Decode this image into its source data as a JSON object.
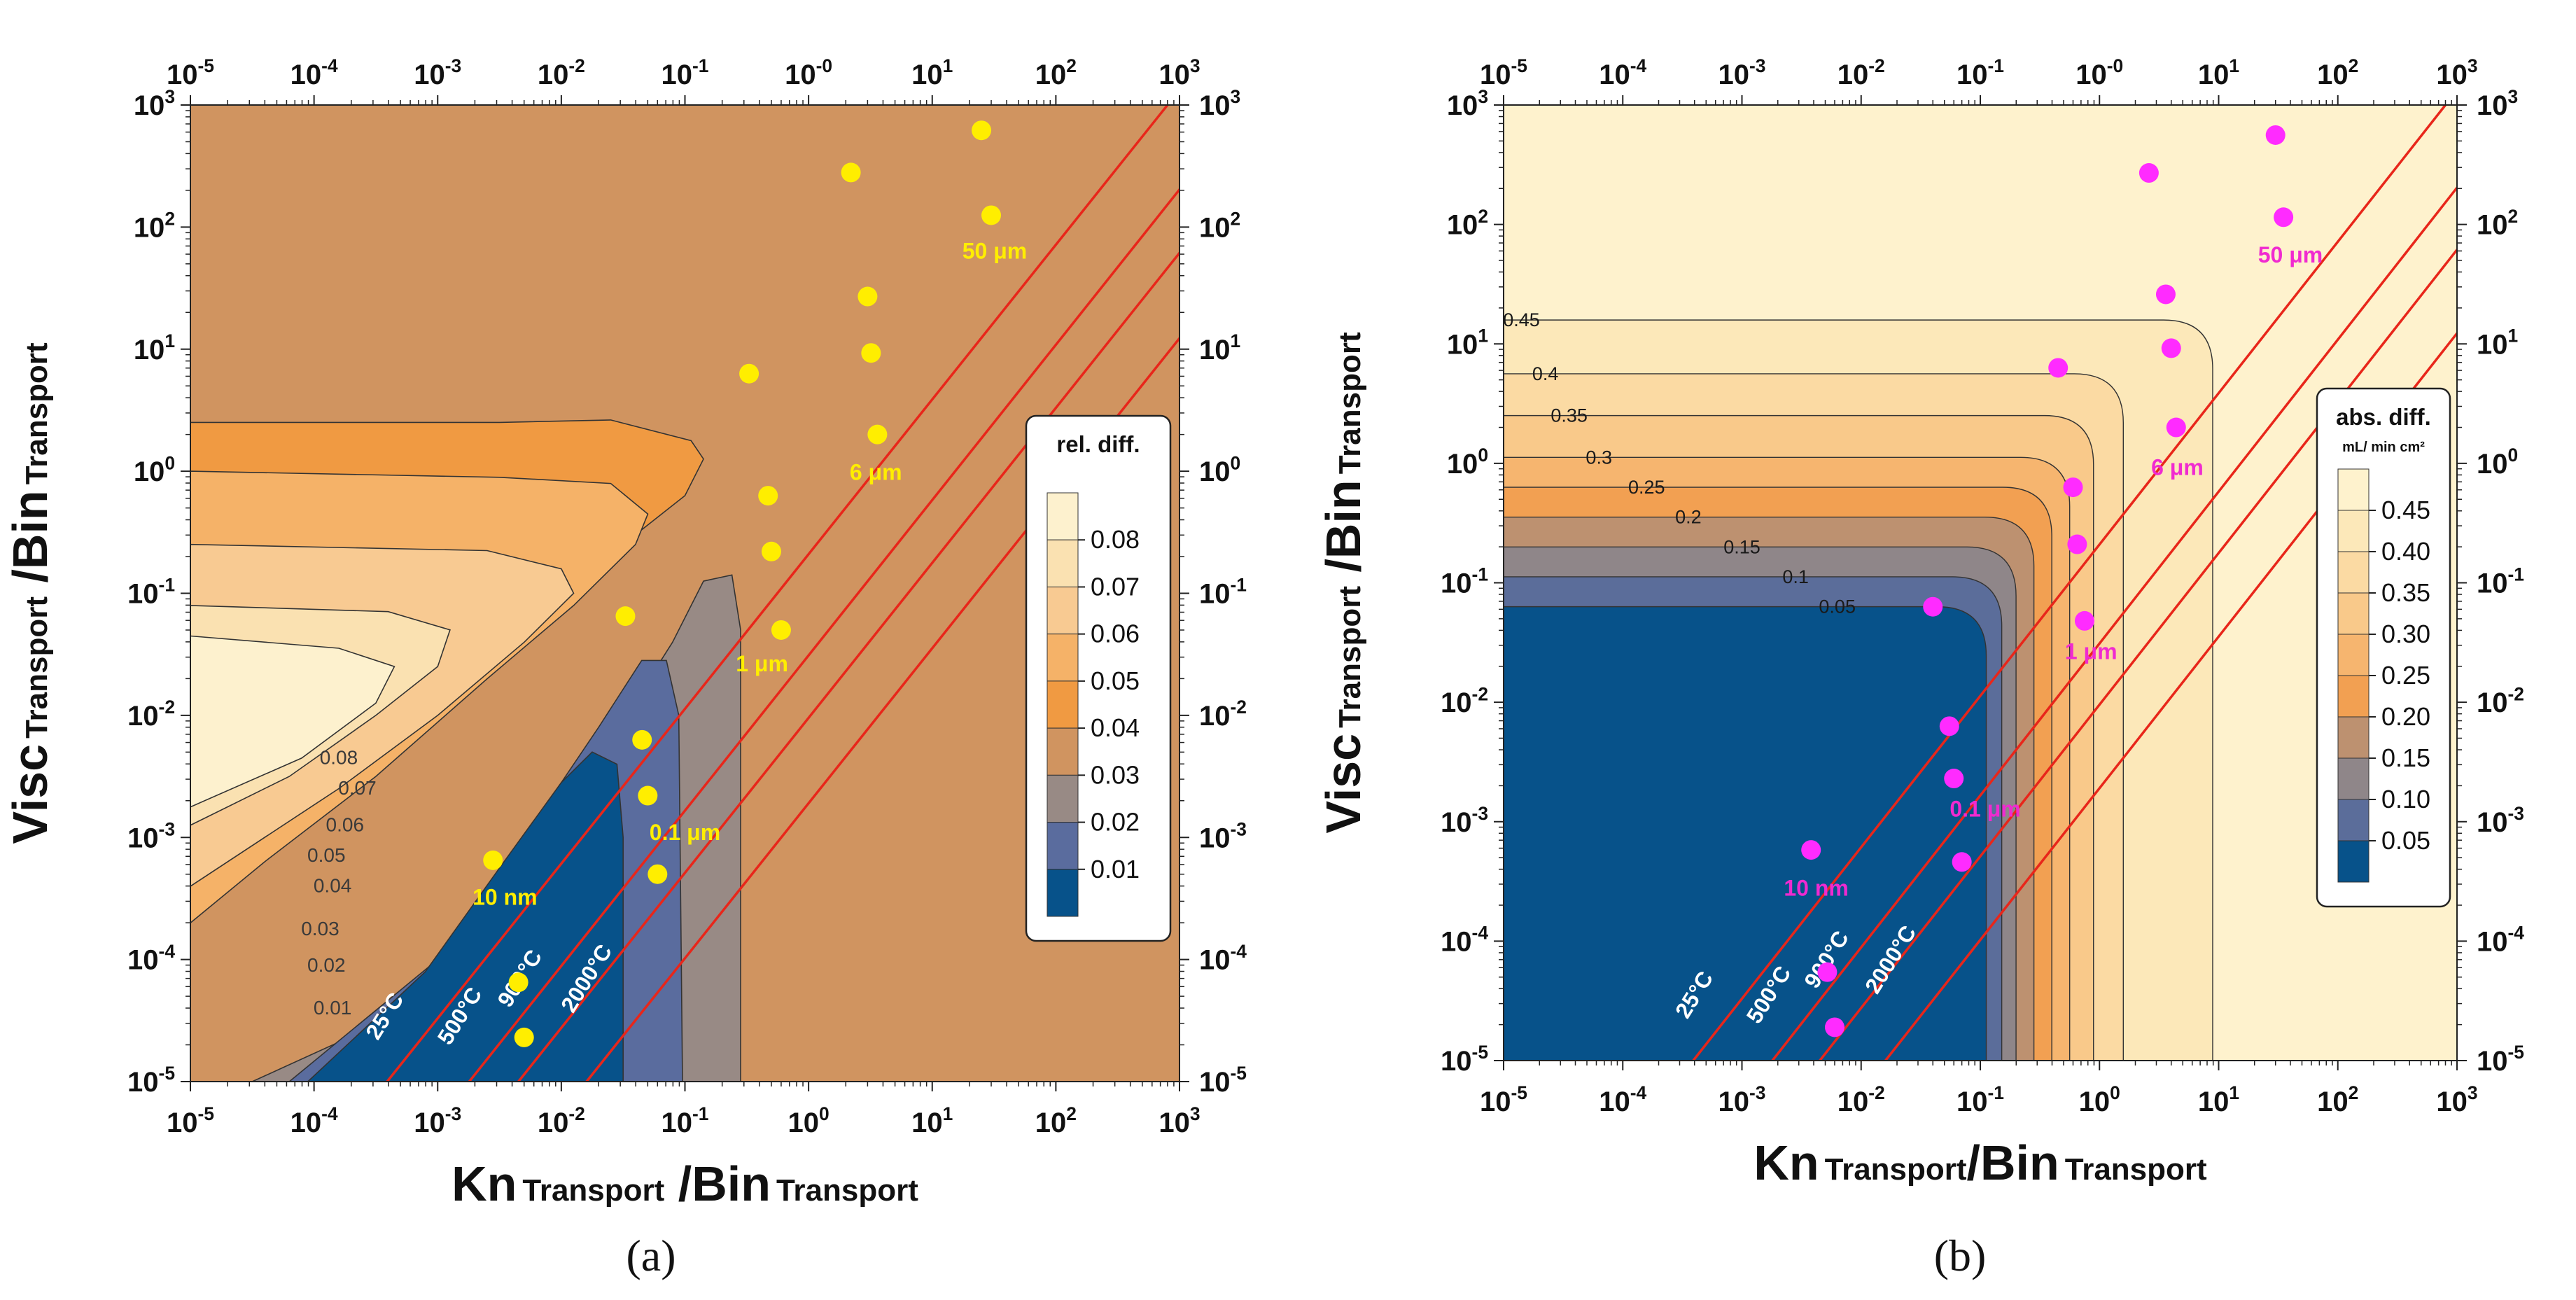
{
  "figure": {
    "caption_a": "(a)",
    "caption_b": "(b)"
  },
  "chart_data": [
    {
      "id": "a",
      "type": "contour",
      "x_scale": "log",
      "y_scale": "log",
      "xlim": [
        1e-05,
        1000
      ],
      "ylim": [
        1e-05,
        1000
      ],
      "x_ticks": [
        -5,
        -4,
        -3,
        -2,
        -1,
        0,
        1,
        2,
        3
      ],
      "y_ticks": [
        -5,
        -4,
        -3,
        -2,
        -1,
        0,
        1,
        2,
        3
      ],
      "tick_labels": [
        "10^-5",
        "10^-4",
        "10^-3",
        "10^-2",
        "10^-1",
        "10^0",
        "10^1",
        "10^2",
        "10^3"
      ],
      "top_axis_note": "top tick at 1 is printed as 10^-0",
      "xlabel_main": "Kn",
      "xlabel_sub": "Transport",
      "xlabel_sep": " /",
      "xlabel_main2": "Bin",
      "xlabel_sub2": "Transport",
      "ylabel_main": "Visc",
      "ylabel_sub": "Transport",
      "ylabel_sep": " /",
      "ylabel_main2": "Bin",
      "ylabel_sub2": "Transport",
      "legend_title": "rel. diff.",
      "legend_unit": "",
      "legend_position": "right",
      "legend_levels": [
        "0.08",
        "0.07",
        "0.06",
        "0.05",
        "0.04",
        "0.03",
        "0.02",
        "0.01"
      ],
      "legend_colors": [
        "#fdf1ce",
        "#fae1b1",
        "#f8ca92",
        "#f5b268",
        "#f09a42",
        "#d09460",
        "#988a85",
        "#5a6c9e",
        "#07528a"
      ],
      "contour_labels": [
        "0.08",
        "0.07",
        "0.06",
        "0.05",
        "0.04",
        "0.03",
        "0.02",
        "0.01"
      ],
      "temperature_labels": [
        "25°C",
        "500°C",
        "900°C",
        "2000°C"
      ],
      "size_labels": [
        "10 nm",
        "0.1 μm",
        "1 μm",
        "6 μm",
        "50 μm"
      ],
      "marker_color": "#ffee00",
      "line_color": "#e8261a",
      "label_color": "#ffee00",
      "temperature_lines": [
        {
          "label": "25°C",
          "points": [
            [
              0.00039,
              1e-05
            ],
            [
              800,
              1000
            ]
          ]
        },
        {
          "label": "500°C",
          "points": [
            [
              0.0018,
              1e-05
            ],
            [
              3500,
              1000
            ]
          ]
        },
        {
          "label": "900°C",
          "points": [
            [
              0.0045,
              1e-05
            ],
            [
              9000,
              1000
            ]
          ]
        },
        {
          "label": "2000°C",
          "points": [
            [
              0.016,
              1e-05
            ],
            [
              32000,
              1000
            ]
          ]
        }
      ],
      "markers": [
        {
          "size": "10 nm",
          "points": [
            [
              0.0028,
              0.00065
            ],
            [
              0.0045,
              6.5e-05
            ],
            [
              0.005,
              2.3e-05
            ]
          ]
        },
        {
          "size": "0.1 μm",
          "points": [
            [
              0.033,
              0.065
            ],
            [
              0.045,
              0.0063
            ],
            [
              0.05,
              0.0022
            ],
            [
              0.06,
              0.0005
            ]
          ]
        },
        {
          "size": "1 μm",
          "points": [
            [
              0.33,
              6.3
            ],
            [
              0.47,
              0.63
            ],
            [
              0.5,
              0.22
            ],
            [
              0.6,
              0.05
            ]
          ]
        },
        {
          "size": "6 μm",
          "points": [
            [
              2.2,
              280
            ],
            [
              3,
              27
            ],
            [
              3.2,
              9.3
            ],
            [
              3.6,
              2.0
            ]
          ]
        },
        {
          "size": "50 μm",
          "points": [
            [
              25,
              620
            ],
            [
              30,
              125
            ]
          ]
        }
      ],
      "label_pos": {
        "10 nm": [
          0.0035,
          0.00028
        ],
        "0.1 μm": [
          0.1,
          0.00095
        ],
        "1 μm": [
          0.42,
          0.023
        ],
        "6 μm": [
          3.5,
          0.85
        ],
        "50 μm": [
          32,
          55
        ]
      }
    },
    {
      "id": "b",
      "type": "contour",
      "x_scale": "log",
      "y_scale": "log",
      "xlim": [
        1e-05,
        1000
      ],
      "ylim": [
        1e-05,
        1000
      ],
      "x_ticks": [
        -5,
        -4,
        -3,
        -2,
        -1,
        0,
        1,
        2,
        3
      ],
      "y_ticks": [
        -5,
        -4,
        -3,
        -2,
        -1,
        0,
        1,
        2,
        3
      ],
      "tick_labels": [
        "10^-5",
        "10^-4",
        "10^-3",
        "10^-2",
        "10^-1",
        "10^0",
        "10^1",
        "10^2",
        "10^3"
      ],
      "top_axis_note": "top tick at 1 is printed as 10^-0",
      "xlabel_main": "Kn",
      "xlabel_sub": "Transport",
      "xlabel_sep": "/",
      "xlabel_main2": "Bin",
      "xlabel_sub2": "Transport",
      "ylabel_main": "Visc",
      "ylabel_sub": "Transport",
      "ylabel_sep": " /",
      "ylabel_main2": "Bin",
      "ylabel_sub2": "Transport",
      "legend_title": "abs. diff.",
      "legend_unit": "mL/ min cm²",
      "legend_position": "right",
      "legend_levels": [
        "0.45",
        "0.40",
        "0.35",
        "0.30",
        "0.25",
        "0.20",
        "0.15",
        "0.10",
        "0.05"
      ],
      "legend_colors": [
        "#fef2cd",
        "#fce8b9",
        "#fbdaa3",
        "#f9c98a",
        "#f6b56f",
        "#f2a052",
        "#bd9170",
        "#8f8689",
        "#5b6d9a",
        "#07528a"
      ],
      "contour_labels": [
        "0.45",
        "0.4",
        "0.35",
        "0.3",
        "0.25",
        "0.2",
        "0.15",
        "0.1",
        "0.05"
      ],
      "temperature_labels": [
        "25°C",
        "500°C",
        "900°C",
        "2000°C"
      ],
      "size_labels": [
        "10 nm",
        "0.1 μm",
        "1 μm",
        "6 μm",
        "50 μm"
      ],
      "marker_color": "#ff2bff",
      "line_color": "#e8261a",
      "label_color": "#f02ad0",
      "temperature_lines": [
        {
          "label": "25°C",
          "points": [
            [
              0.00039,
              1e-05
            ],
            [
              800,
              1000
            ]
          ]
        },
        {
          "label": "500°C",
          "points": [
            [
              0.0018,
              1e-05
            ],
            [
              3500,
              1000
            ]
          ]
        },
        {
          "label": "900°C",
          "points": [
            [
              0.0045,
              1e-05
            ],
            [
              9000,
              1000
            ]
          ]
        },
        {
          "label": "2000°C",
          "points": [
            [
              0.016,
              1e-05
            ],
            [
              32000,
              1000
            ]
          ]
        }
      ],
      "markers": [
        {
          "size": "10 nm",
          "points": [
            [
              0.0038,
              0.00058
            ],
            [
              0.0052,
              5.5e-05
            ],
            [
              0.006,
              1.9e-05
            ]
          ]
        },
        {
          "size": "0.1 μm",
          "points": [
            [
              0.04,
              0.063
            ],
            [
              0.055,
              0.0063
            ],
            [
              0.06,
              0.0023
            ],
            [
              0.07,
              0.00046
            ]
          ]
        },
        {
          "size": "1 μm",
          "points": [
            [
              0.45,
              6.3
            ],
            [
              0.6,
              0.63
            ],
            [
              0.65,
              0.21
            ],
            [
              0.75,
              0.048
            ]
          ]
        },
        {
          "size": "6 μm",
          "points": [
            [
              2.6,
              270
            ],
            [
              3.6,
              26
            ],
            [
              4,
              9.2
            ],
            [
              4.4,
              2.0
            ]
          ]
        },
        {
          "size": "50 μm",
          "points": [
            [
              30,
              560
            ],
            [
              35,
              115
            ]
          ]
        }
      ],
      "label_pos": {
        "10 nm": [
          0.0042,
          0.00024
        ],
        "0.1 μm": [
          0.11,
          0.0011
        ],
        "1 μm": [
          0.85,
          0.023
        ],
        "6 μm": [
          4.5,
          0.8
        ],
        "50 μm": [
          40,
          48
        ]
      }
    }
  ]
}
